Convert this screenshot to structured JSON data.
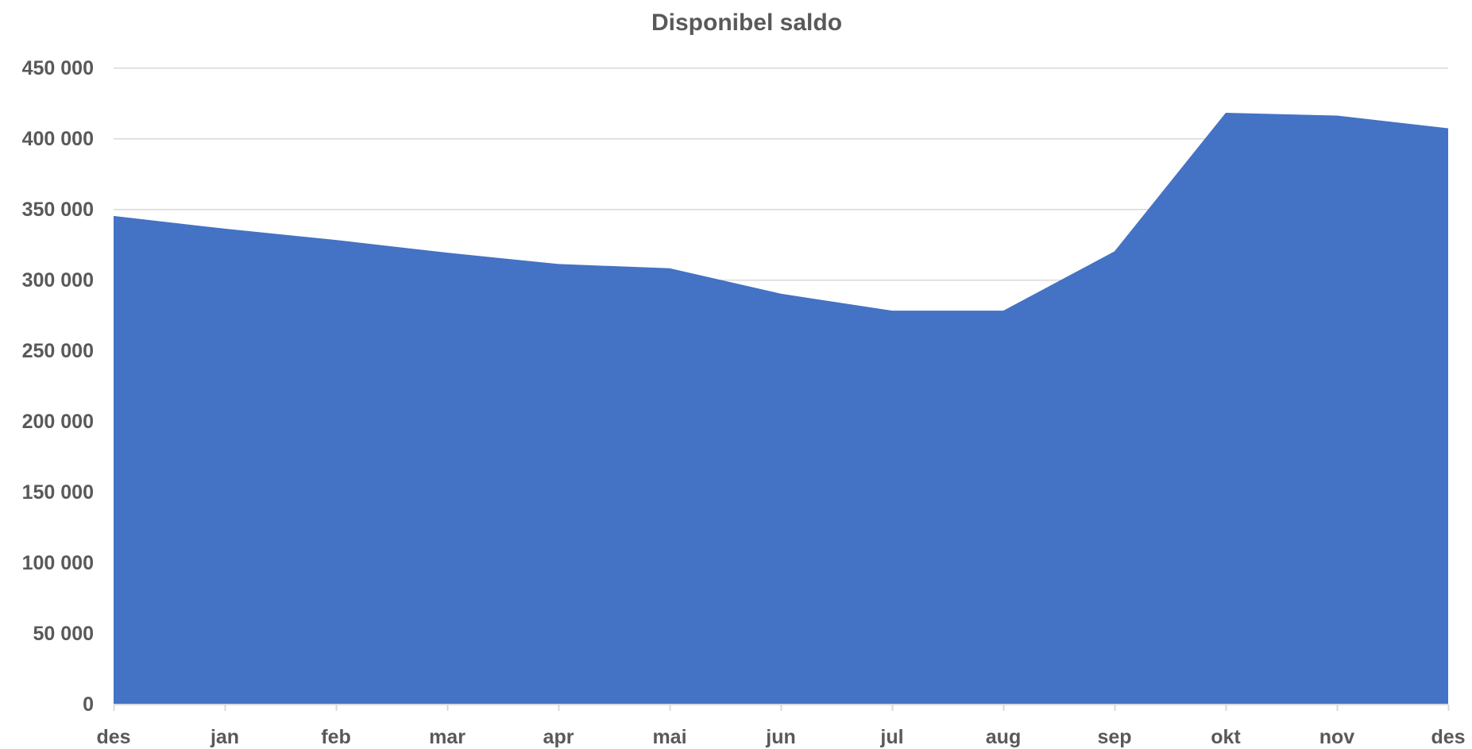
{
  "chart_data": {
    "type": "area",
    "title": "Disponibel saldo",
    "xlabel": "",
    "ylabel": "",
    "categories": [
      "des",
      "jan",
      "feb",
      "mar",
      "apr",
      "mai",
      "jun",
      "jul",
      "aug",
      "sep",
      "okt",
      "nov",
      "des"
    ],
    "values": [
      345000,
      336000,
      328000,
      319000,
      311000,
      308000,
      290000,
      278000,
      278000,
      320000,
      418000,
      416000,
      407000
    ],
    "ylim": [
      0,
      450000
    ],
    "y_ticks": [
      0,
      50000,
      100000,
      150000,
      200000,
      250000,
      300000,
      350000,
      400000,
      450000
    ],
    "y_tick_labels": [
      "0",
      "50 000",
      "100 000",
      "150 000",
      "200 000",
      "250 000",
      "300 000",
      "350 000",
      "400 000",
      "450 000"
    ],
    "grid": true,
    "legend": "none",
    "colors": {
      "fill": "#4472C4",
      "grid": "#D9D9D9",
      "text": "#595959"
    }
  }
}
